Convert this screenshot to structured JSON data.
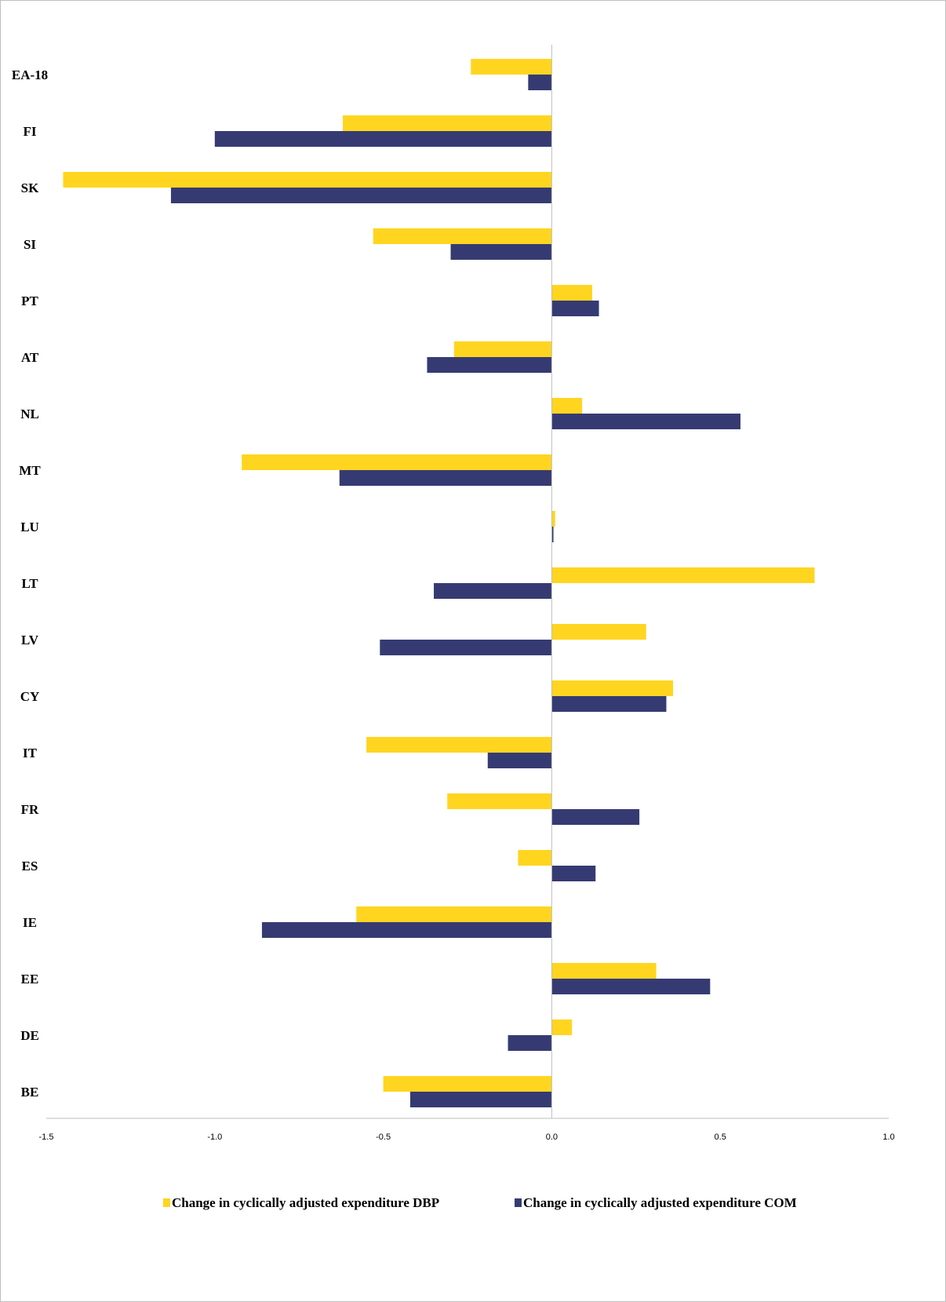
{
  "chart_data": {
    "type": "bar",
    "orientation": "horizontal",
    "title": "",
    "xlabel": "",
    "ylabel": "",
    "xlim": [
      -1.5,
      1.0
    ],
    "x_ticks": [
      "-1.5",
      "-1.0",
      "-0.5",
      "0.0",
      "0.5",
      "1.0"
    ],
    "grid": false,
    "legend_position": "bottom",
    "categories": [
      "EA-18",
      "FI",
      "SK",
      "SI",
      "PT",
      "AT",
      "NL",
      "MT",
      "LU",
      "LT",
      "LV",
      "CY",
      "IT",
      "FR",
      "ES",
      "IE",
      "EE",
      "DE",
      "BE"
    ],
    "series": [
      {
        "name": "Change in cyclically adjusted expenditure DBP",
        "color": "#FFD520",
        "values": [
          -0.24,
          -0.62,
          -1.45,
          -0.53,
          0.12,
          -0.29,
          0.09,
          -0.92,
          0.01,
          0.78,
          0.28,
          0.36,
          -0.55,
          -0.31,
          -0.1,
          -0.58,
          0.31,
          0.06,
          -0.5
        ]
      },
      {
        "name": "Change in cyclically adjusted expenditure COM",
        "color": "#353B72",
        "values": [
          -0.07,
          -1.0,
          -1.13,
          -0.3,
          0.14,
          -0.37,
          0.56,
          -0.63,
          0.005,
          -0.35,
          -0.51,
          0.34,
          -0.19,
          0.26,
          0.13,
          -0.86,
          0.47,
          -0.13,
          -0.42
        ]
      }
    ]
  }
}
